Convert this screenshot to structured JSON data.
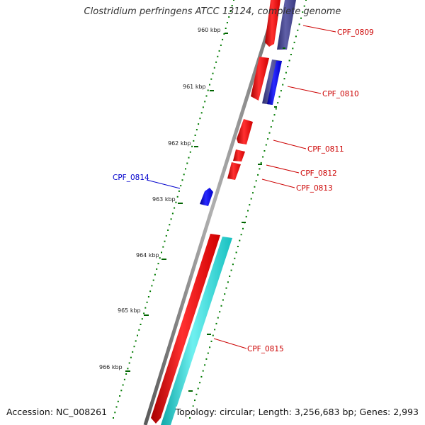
{
  "title": "Clostridium perfringens ATCC 13124, complete genome",
  "footer": {
    "accession": "Accession: NC_008261",
    "summary": "Topology: circular; Length: 3,256,683 bp; Genes: 2,993"
  },
  "ruler_labels": [
    "960 kbp",
    "961 kbp",
    "962 kbp",
    "963 kbp",
    "964 kbp",
    "965 kbp",
    "966 kbp"
  ],
  "genes": [
    {
      "name": "CPF_0809",
      "color": "#cc0000"
    },
    {
      "name": "CPF_0810",
      "color": "#cc0000"
    },
    {
      "name": "CPF_0811",
      "color": "#cc0000"
    },
    {
      "name": "CPF_0812",
      "color": "#cc0000"
    },
    {
      "name": "CPF_0813",
      "color": "#cc0000"
    },
    {
      "name": "CPF_0814",
      "color": "#0000cc"
    },
    {
      "name": "CPF_0815",
      "color": "#cc0000"
    }
  ],
  "colors": {
    "backbone": "#7a7a7a",
    "cds_forward": "#ff0000",
    "cds_reverse": "#0000ff",
    "cog_track": "#4b4b8f",
    "rna_track": "#22cccc",
    "ruler": "#006400"
  }
}
